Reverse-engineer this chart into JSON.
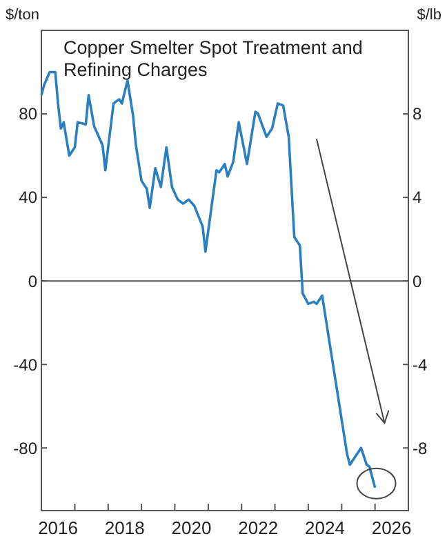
{
  "chart_data": {
    "type": "line",
    "title": "Copper Smelter Spot Treatment and\nRefining Charges",
    "ylabel": "$/ton",
    "y2label": "$/lb",
    "x": [
      "2016-01",
      "2016-02",
      "2016-04",
      "2016-06",
      "2016-07",
      "2016-08",
      "2016-09",
      "2016-11",
      "2017-01",
      "2017-02",
      "2017-05",
      "2017-06",
      "2017-08",
      "2017-11",
      "2017-12",
      "2018-03",
      "2018-05",
      "2018-06",
      "2018-08",
      "2018-10",
      "2018-11",
      "2019-01",
      "2019-03",
      "2019-04",
      "2019-06",
      "2019-08",
      "2019-10",
      "2019-12",
      "2020-02",
      "2020-04",
      "2020-06",
      "2020-08",
      "2020-11",
      "2020-12",
      "2021-04",
      "2021-05",
      "2021-07",
      "2021-08",
      "2021-10",
      "2021-12",
      "2022-03",
      "2022-06",
      "2022-07",
      "2022-10",
      "2022-12",
      "2023-02",
      "2023-04",
      "2023-06",
      "2023-08",
      "2023-10",
      "2023-11",
      "2024-01",
      "2024-03",
      "2024-04",
      "2024-06",
      "2025-03",
      "2025-04",
      "2025-08",
      "2025-10",
      "2025-11",
      "2026-01"
    ],
    "series": [
      {
        "color": "#2a7fc1",
        "values": [
          89,
          94,
          100,
          100,
          85,
          73,
          76,
          60,
          64,
          76,
          75,
          89,
          74,
          65,
          53,
          85,
          87,
          85,
          96,
          79,
          65,
          48,
          44,
          35,
          54,
          45,
          64,
          45,
          39,
          37,
          39,
          36,
          26,
          14,
          53,
          52,
          56,
          50,
          57,
          76,
          56,
          81,
          80,
          69,
          73,
          85,
          84,
          69,
          21,
          17,
          -6,
          -11,
          -10,
          -11,
          -7,
          -83,
          -88,
          -80,
          -88,
          -89,
          -99
        ]
      }
    ],
    "xlim": [
      "2016-01-01",
      "2027-01-01"
    ],
    "xticks": [
      {
        "value": "2016-07-01",
        "label": "2016"
      },
      {
        "value": "2017-01-01",
        "label": null
      },
      {
        "value": "2018-01-01",
        "label": null
      },
      {
        "value": "2018-07-01",
        "label": "2018"
      },
      {
        "value": "2019-01-01",
        "label": null
      },
      {
        "value": "2020-01-01",
        "label": null
      },
      {
        "value": "2020-07-01",
        "label": "2020"
      },
      {
        "value": "2021-01-01",
        "label": null
      },
      {
        "value": "2022-01-01",
        "label": null
      },
      {
        "value": "2022-07-01",
        "label": "2022"
      },
      {
        "value": "2023-01-01",
        "label": null
      },
      {
        "value": "2024-01-01",
        "label": null
      },
      {
        "value": "2024-07-01",
        "label": "2024"
      },
      {
        "value": "2025-01-01",
        "label": null
      },
      {
        "value": "2026-01-01",
        "label": null
      },
      {
        "value": "2026-07-01",
        "label": "2026"
      }
    ],
    "ylim": [
      -110,
      120
    ],
    "yticks": [
      -80,
      -40,
      0,
      40,
      80
    ],
    "y2lim": [
      -11,
      12
    ],
    "y2ticks": [
      -8,
      -4,
      0,
      4,
      8
    ],
    "ref_lines": [
      {
        "axis": "y",
        "value": 0,
        "color": "#555555"
      }
    ],
    "grid": false,
    "marker": "none",
    "line_style": "solid"
  }
}
